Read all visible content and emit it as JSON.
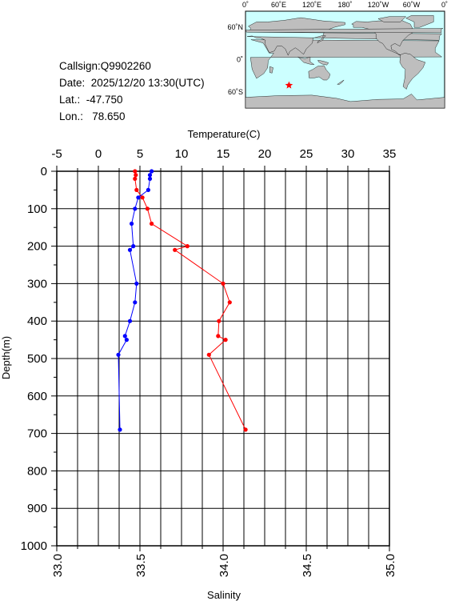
{
  "info": {
    "callsign": "Callsign:Q9902260",
    "date": "Date:  2025/12/20 13:30(UTC)",
    "lat": "Lat.:  -47.750",
    "lon": "Lon.:   78.650"
  },
  "map": {
    "top_labels": [
      "0˚",
      "60˚E",
      "120˚E",
      "180˚",
      "120˚W",
      "60˚W",
      "0˚"
    ],
    "lat_labels": [
      "60˚N",
      "0˚",
      "60˚S"
    ],
    "station": {
      "lon": 78.65,
      "lat": -47.75
    },
    "colors": {
      "ocean": "#ccffff",
      "land": "#bebebe",
      "marker": "#ff0000"
    }
  },
  "chart_data": {
    "type": "line",
    "xlabel_top": "Temperature(C)",
    "xlabel_bottom": "Salinity",
    "ylabel": "Depth(m)",
    "temperature_axis": {
      "range": [
        -5,
        35
      ],
      "ticks": [
        "-5",
        "0",
        "5",
        "10",
        "15",
        "20",
        "25",
        "30",
        "35"
      ]
    },
    "salinity_axis": {
      "range": [
        33.0,
        35.0
      ],
      "ticks": [
        "33.0",
        "33.5",
        "34.0",
        "34.5",
        "35.0"
      ]
    },
    "depth_axis": {
      "range": [
        0,
        1000
      ],
      "ticks": [
        "0",
        "100",
        "200",
        "300",
        "400",
        "500",
        "600",
        "700",
        "800",
        "900",
        "1000"
      ]
    },
    "grid": true,
    "series": [
      {
        "quantity": "temperature",
        "color": "#ff0000",
        "points": [
          {
            "depth": 0,
            "value": 4.4
          },
          {
            "depth": 10,
            "value": 4.5
          },
          {
            "depth": 20,
            "value": 4.4
          },
          {
            "depth": 50,
            "value": 4.6
          },
          {
            "depth": 70,
            "value": 5.3
          },
          {
            "depth": 100,
            "value": 5.9
          },
          {
            "depth": 140,
            "value": 6.4
          },
          {
            "depth": 200,
            "value": 10.7
          },
          {
            "depth": 210,
            "value": 9.2
          },
          {
            "depth": 300,
            "value": 15.0
          },
          {
            "depth": 350,
            "value": 15.8
          },
          {
            "depth": 400,
            "value": 14.5
          },
          {
            "depth": 440,
            "value": 14.4
          },
          {
            "depth": 450,
            "value": 15.3
          },
          {
            "depth": 490,
            "value": 13.3
          },
          {
            "depth": 690,
            "value": 17.7
          }
        ]
      },
      {
        "quantity": "salinity",
        "color": "#0000ff",
        "points": [
          {
            "depth": 0,
            "value": 33.57
          },
          {
            "depth": 10,
            "value": 33.56
          },
          {
            "depth": 20,
            "value": 33.56
          },
          {
            "depth": 50,
            "value": 33.55
          },
          {
            "depth": 70,
            "value": 33.49
          },
          {
            "depth": 100,
            "value": 33.47
          },
          {
            "depth": 140,
            "value": 33.45
          },
          {
            "depth": 200,
            "value": 33.46
          },
          {
            "depth": 210,
            "value": 33.44
          },
          {
            "depth": 300,
            "value": 33.48
          },
          {
            "depth": 350,
            "value": 33.47
          },
          {
            "depth": 400,
            "value": 33.44
          },
          {
            "depth": 440,
            "value": 33.41
          },
          {
            "depth": 450,
            "value": 33.42
          },
          {
            "depth": 490,
            "value": 33.37
          },
          {
            "depth": 690,
            "value": 33.38
          }
        ]
      }
    ]
  }
}
